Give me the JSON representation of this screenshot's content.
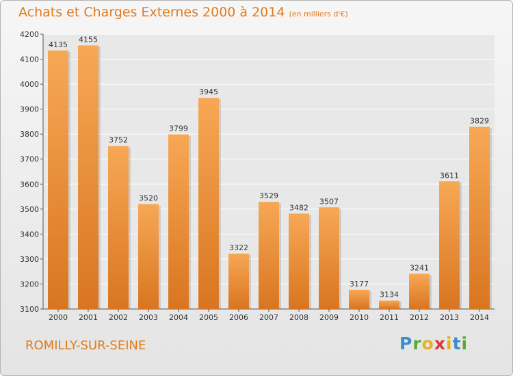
{
  "header": {
    "title": "Achats et Charges Externes 2000 à 2014",
    "subtitle": "(en milliers d'€)"
  },
  "footer": {
    "city": "ROMILLY-SUR-SEINE",
    "brand_letters": [
      "P",
      "r",
      "o",
      "x",
      "i",
      "t",
      "i"
    ],
    "brand_colors": [
      "#3a8ed0",
      "#5aa83a",
      "#e8b020",
      "#d83a3a",
      "#e8b020",
      "#3a8ed0",
      "#5aa83a"
    ]
  },
  "colors": {
    "bar_light": "#f7a855",
    "bar_dark": "#d97520",
    "title": "#e27a1c",
    "grid": "#ffffff"
  },
  "chart_data": {
    "type": "bar",
    "categories": [
      "2000",
      "2001",
      "2002",
      "2003",
      "2004",
      "2005",
      "2006",
      "2007",
      "2008",
      "2009",
      "2010",
      "2011",
      "2012",
      "2013",
      "2014"
    ],
    "values": [
      4135,
      4155,
      3752,
      3520,
      3799,
      3945,
      3322,
      3529,
      3482,
      3507,
      3177,
      3134,
      3241,
      3611,
      3829
    ],
    "ylim": [
      3100,
      4200
    ],
    "yticks": [
      3100,
      3200,
      3300,
      3400,
      3500,
      3600,
      3700,
      3800,
      3900,
      4000,
      4100,
      4200
    ],
    "grid": true,
    "data_labels": true
  }
}
